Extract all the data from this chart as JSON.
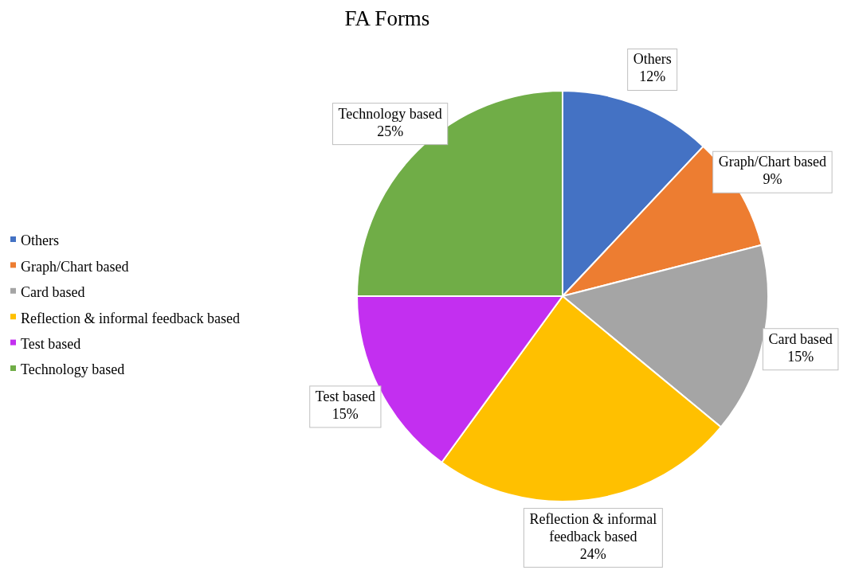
{
  "chart_data": {
    "type": "pie",
    "title": "FA Forms",
    "categories": [
      "Others",
      "Graph/Chart based",
      "Card based",
      "Reflection & informal feedback based",
      "Test based",
      "Technology based"
    ],
    "values": [
      12,
      9,
      15,
      24,
      15,
      25
    ],
    "value_labels": [
      "12%",
      "9%",
      "15%",
      "24%",
      "15%",
      "25%"
    ],
    "colors": [
      "#4472c4",
      "#ed7d31",
      "#a5a5a5",
      "#ffc000",
      "#c32ff0",
      "#70ad47"
    ],
    "legend": "left"
  }
}
